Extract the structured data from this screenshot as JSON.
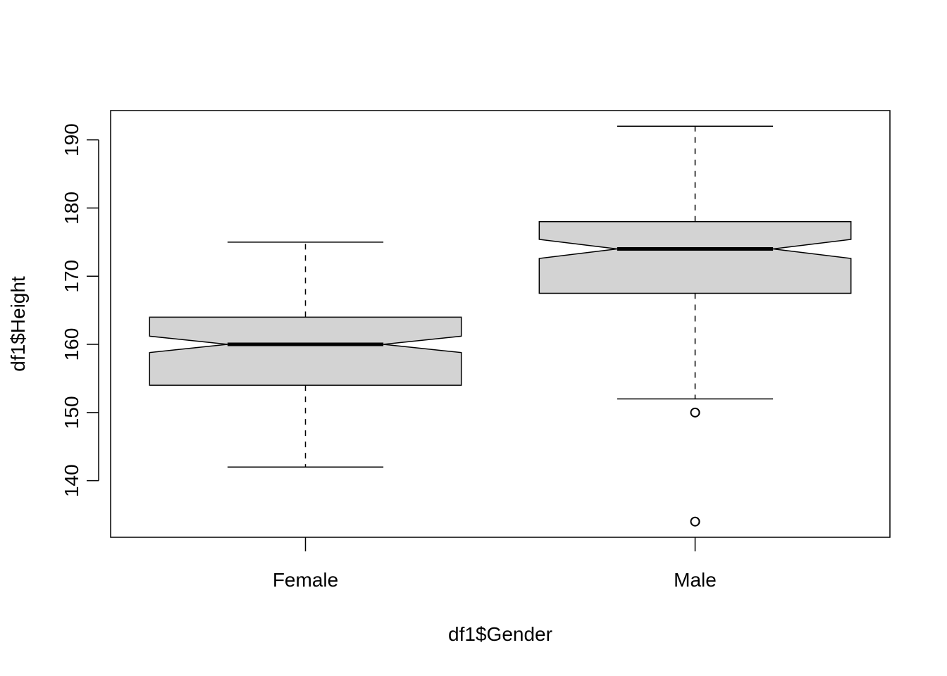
{
  "chart_data": {
    "type": "boxplot",
    "notched": true,
    "title": "",
    "xlabel": "df1$Gender",
    "ylabel": "df1$Height",
    "ylim": [
      131.7,
      194.3
    ],
    "yticks": [
      140,
      150,
      160,
      170,
      180,
      190
    ],
    "categories": [
      "Female",
      "Male"
    ],
    "boxes": [
      {
        "category": "Female",
        "whisker_low": 142,
        "q1": 154,
        "median": 160,
        "q3": 164,
        "whisker_high": 175,
        "notch_low": 158.8,
        "notch_high": 161.2,
        "outliers": []
      },
      {
        "category": "Male",
        "whisker_low": 152,
        "q1": 167.5,
        "median": 174,
        "q3": 178,
        "whisker_high": 192,
        "notch_low": 172.6,
        "notch_high": 175.4,
        "outliers": [
          150,
          134
        ]
      }
    ],
    "colors": {
      "box_fill": "#d3d3d3",
      "stroke": "#000000",
      "background": "#ffffff"
    },
    "grid": false,
    "legend": "none"
  }
}
